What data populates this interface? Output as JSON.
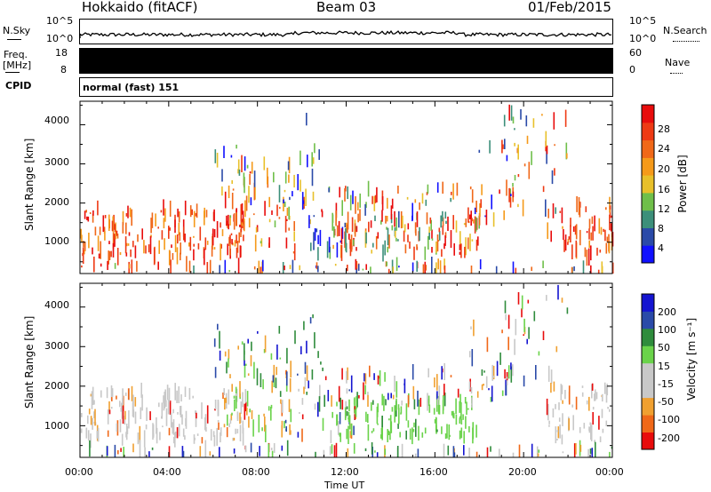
{
  "header": {
    "left_title": "Hokkaido (fitACF)",
    "center_title": "Beam 03",
    "right_title": "01/Feb/2015"
  },
  "noise_panel": {
    "left_label": "N.Sky",
    "right_label": "N.Search",
    "left_ticks": [
      "10^5",
      "10^0"
    ],
    "right_ticks": [
      "10^5",
      "10^0"
    ]
  },
  "freq_panel": {
    "left_label_1": "Freq.",
    "left_label_2": "[MHz]",
    "right_label": "Nave",
    "left_ticks": [
      "18",
      "8"
    ],
    "right_ticks": [
      "60",
      "0"
    ]
  },
  "cpid_panel": {
    "label": "CPID",
    "value": "normal (fast) 151"
  },
  "colors": {
    "power_scale": [
      "#1010ff",
      "#2a4aa8",
      "#3c8f7a",
      "#6fbf4a",
      "#e8c02a",
      "#f59a1a",
      "#f06818",
      "#ee3a14",
      "#e80c0c"
    ],
    "velocity_scale": [
      "#1414d0",
      "#2a4aa8",
      "#2f8c3c",
      "#6ad34a",
      "#c8c8c8",
      "#c8c8c8",
      "#f0a030",
      "#f06818",
      "#e80c0c"
    ]
  },
  "chart_data": [
    {
      "type": "heatmap",
      "name": "power",
      "ylabel": "Slant Range [km]",
      "yticks": [
        "4000",
        "3000",
        "2000",
        "1000"
      ],
      "ylim": [
        200,
        4600
      ],
      "xlim": [
        "00:00",
        "24:00"
      ],
      "colorbar_label": "Power [dB]",
      "colorbar_ticks": [
        "28",
        "24",
        "20",
        "16",
        "12",
        "8",
        "4"
      ],
      "colorbar_range": [
        0,
        32
      ]
    },
    {
      "type": "heatmap",
      "name": "velocity",
      "ylabel": "Slant Range [km]",
      "yticks": [
        "4000",
        "3000",
        "2000",
        "1000"
      ],
      "ylim": [
        200,
        4600
      ],
      "xlim": [
        "00:00",
        "24:00"
      ],
      "colorbar_label": "Velocity [m s⁻¹]",
      "colorbar_ticks": [
        "200",
        "100",
        "50",
        "15",
        "-15",
        "-50",
        "-100",
        "-200"
      ]
    }
  ],
  "x_axis": {
    "ticks": [
      "00:00",
      "04:00",
      "08:00",
      "12:00",
      "16:00",
      "20:00",
      "00:00"
    ],
    "label": "Time UT"
  }
}
